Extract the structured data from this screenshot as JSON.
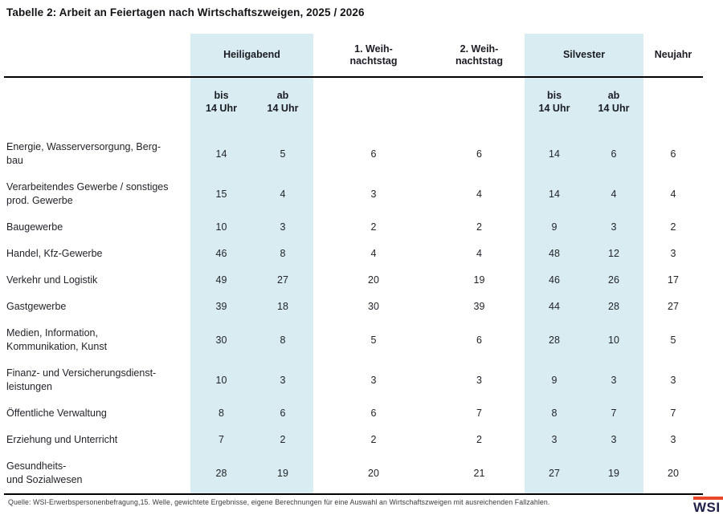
{
  "title": "Tabelle 2: Arbeit an Feiertagen nach Wirtschaftszweigen, 2025 / 2026",
  "colors": {
    "highlight": "#d8ecf1",
    "accent_bar": "#e8472a"
  },
  "table": {
    "group_headers": {
      "heiligabend": "Heiligabend",
      "weihnachtstag1": "1. Weih-\nnachtstag",
      "weihnachtstag2": "2. Weih-\nnachtstag",
      "silvester": "Silvester",
      "neujahr": "Neujahr"
    },
    "sub_headers": [
      "bis\n14 Uhr",
      "ab\n14 Uhr",
      "bis\n14 Uhr",
      "ab\n14 Uhr"
    ],
    "highlighted_value_columns": [
      0,
      1,
      4,
      5
    ],
    "rows": [
      {
        "label": "Energie, Wasserversorgung, Berg-\nbau",
        "values": [
          14,
          5,
          6,
          6,
          14,
          6,
          6
        ]
      },
      {
        "label": "Verarbeitendes Gewerbe / sonstiges\nprod. Gewerbe",
        "values": [
          15,
          4,
          3,
          4,
          14,
          4,
          4
        ]
      },
      {
        "label": "Baugewerbe",
        "values": [
          10,
          3,
          2,
          2,
          9,
          3,
          2
        ]
      },
      {
        "label": "Handel, Kfz-Gewerbe",
        "values": [
          46,
          8,
          4,
          4,
          48,
          12,
          3
        ]
      },
      {
        "label": "Verkehr und Logistik",
        "values": [
          49,
          27,
          20,
          19,
          46,
          26,
          17
        ]
      },
      {
        "label": "Gastgewerbe",
        "values": [
          39,
          18,
          30,
          39,
          44,
          28,
          27
        ]
      },
      {
        "label": "Medien, Information,\nKommunikation, Kunst",
        "values": [
          30,
          8,
          5,
          6,
          28,
          10,
          5
        ]
      },
      {
        "label": "Finanz- und Versicherungsdienst-\nleistungen",
        "values": [
          10,
          3,
          3,
          3,
          9,
          3,
          3
        ]
      },
      {
        "label": "Öffentliche Verwaltung",
        "values": [
          8,
          6,
          6,
          7,
          8,
          7,
          7
        ]
      },
      {
        "label": "Erziehung und Unterricht",
        "values": [
          7,
          2,
          2,
          2,
          3,
          3,
          3
        ]
      },
      {
        "label": "Gesundheits-\nund Sozialwesen",
        "values": [
          28,
          19,
          20,
          21,
          27,
          19,
          20
        ]
      }
    ]
  },
  "footer": {
    "source": "Quelle: WSI-Erwerbspersonenbefragung,15. Welle, gewichtete Ergebnisse, eigene Berechnungen für eine Auswahl an Wirtschaftszweigen mit ausreichenden Fallzahlen.",
    "logo_text": "WSI"
  },
  "chart_data": {
    "type": "table",
    "title": "Tabelle 2: Arbeit an Feiertagen nach Wirtschaftszweigen, 2025 / 2026",
    "columns": [
      "Heiligabend bis 14 Uhr",
      "Heiligabend ab 14 Uhr",
      "1. Weihnachtstag",
      "2. Weihnachtstag",
      "Silvester bis 14 Uhr",
      "Silvester ab 14 Uhr",
      "Neujahr"
    ],
    "categories": [
      "Energie, Wasserversorgung, Bergbau",
      "Verarbeitendes Gewerbe / sonstiges prod. Gewerbe",
      "Baugewerbe",
      "Handel, Kfz-Gewerbe",
      "Verkehr und Logistik",
      "Gastgewerbe",
      "Medien, Information, Kommunikation, Kunst",
      "Finanz- und Versicherungsdienstleistungen",
      "Öffentliche Verwaltung",
      "Erziehung und Unterricht",
      "Gesundheits- und Sozialwesen"
    ],
    "values": [
      [
        14,
        5,
        6,
        6,
        14,
        6,
        6
      ],
      [
        15,
        4,
        3,
        4,
        14,
        4,
        4
      ],
      [
        10,
        3,
        2,
        2,
        9,
        3,
        2
      ],
      [
        46,
        8,
        4,
        4,
        48,
        12,
        3
      ],
      [
        49,
        27,
        20,
        19,
        46,
        26,
        17
      ],
      [
        39,
        18,
        30,
        39,
        44,
        28,
        27
      ],
      [
        30,
        8,
        5,
        6,
        28,
        10,
        5
      ],
      [
        10,
        3,
        3,
        3,
        9,
        3,
        3
      ],
      [
        8,
        6,
        6,
        7,
        8,
        7,
        7
      ],
      [
        7,
        2,
        2,
        2,
        3,
        3,
        3
      ],
      [
        28,
        19,
        20,
        21,
        27,
        19,
        20
      ]
    ],
    "source": "Quelle: WSI-Erwerbspersonenbefragung,15. Welle, gewichtete Ergebnisse, eigene Berechnungen für eine Auswahl an Wirtschaftszweigen mit ausreichenden Fallzahlen."
  }
}
